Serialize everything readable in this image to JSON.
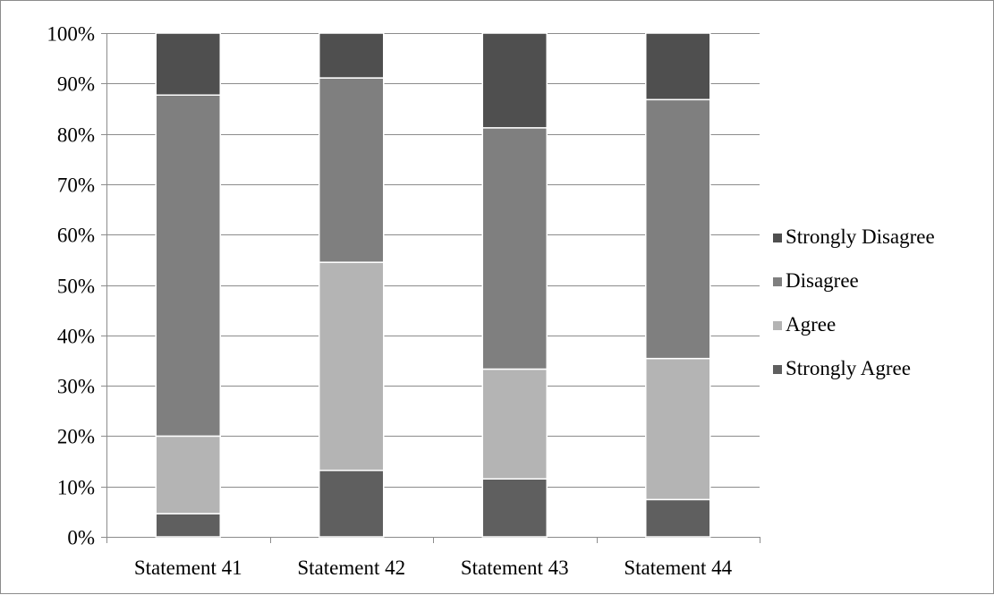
{
  "chart_data": {
    "type": "bar",
    "stacked": true,
    "percent": true,
    "categories": [
      "Statement 41",
      "Statement 42",
      "Statement 43",
      "Statement 44"
    ],
    "series": [
      {
        "name": "Strongly Agree",
        "values": [
          4.6,
          13.2,
          11.5,
          7.4
        ],
        "color": "#5f5f5f"
      },
      {
        "name": "Agree",
        "values": [
          15.4,
          41.3,
          21.8,
          28.0
        ],
        "color": "#b4b4b4"
      },
      {
        "name": "Disagree",
        "values": [
          67.7,
          36.6,
          47.9,
          51.4
        ],
        "color": "#7f7f7f"
      },
      {
        "name": "Strongly Disagree",
        "values": [
          12.3,
          8.9,
          18.8,
          13.2
        ],
        "color": "#4f4f4f"
      }
    ],
    "ylim": [
      0,
      100
    ],
    "yticks": [
      "0%",
      "10%",
      "20%",
      "30%",
      "40%",
      "50%",
      "60%",
      "70%",
      "80%",
      "90%",
      "100%"
    ],
    "grid": true,
    "legend": {
      "position": "right",
      "order": [
        "Strongly Disagree",
        "Disagree",
        "Agree",
        "Strongly Agree"
      ]
    },
    "title": "",
    "xlabel": "",
    "ylabel": ""
  }
}
